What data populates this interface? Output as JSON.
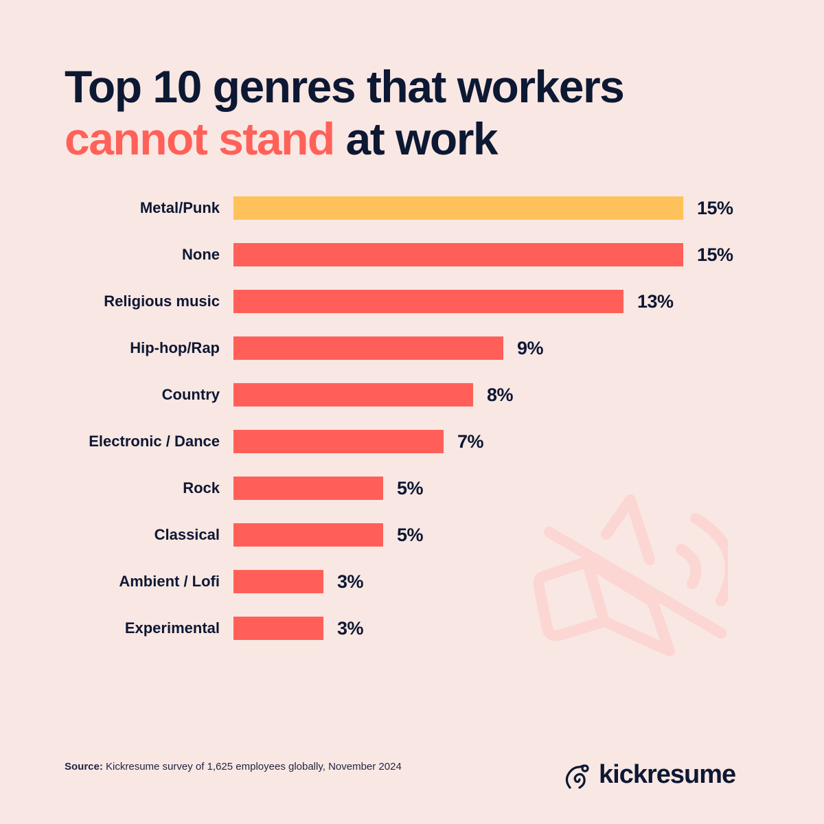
{
  "title": {
    "line1": "Top 10 genres that workers",
    "accent": "cannot stand",
    "rest": " at work"
  },
  "colors": {
    "background": "#f9e7e3",
    "bar": "#ff5f58",
    "highlight_bar": "#ffc15a",
    "text": "#0d1833",
    "accent_text": "#ff6159",
    "decoration": "#fbd6d3"
  },
  "chart_data": {
    "type": "bar",
    "orientation": "horizontal",
    "title": "Top 10 genres that workers cannot stand at work",
    "xlabel": "",
    "ylabel": "",
    "categories": [
      "Metal/Punk",
      "None",
      "Religious music",
      "Hip-hop/Rap",
      "Country",
      "Electronic / Dance",
      "Rock",
      "Classical",
      "Ambient / Lofi",
      "Experimental"
    ],
    "values": [
      15,
      15,
      13,
      9,
      8,
      7,
      5,
      5,
      3,
      3
    ],
    "value_labels": [
      "15%",
      "15%",
      "13%",
      "9%",
      "8%",
      "7%",
      "5%",
      "5%",
      "3%",
      "3%"
    ],
    "highlighted_index": 0,
    "unit": "%",
    "grid": false,
    "legend": null
  },
  "footer": {
    "source_label": "Source:",
    "source_text": " Kickresume survey of 1,625 employees globally, November 2024",
    "brand": "kickresume"
  },
  "decoration": {
    "icon": "muted-speaker-icon"
  }
}
